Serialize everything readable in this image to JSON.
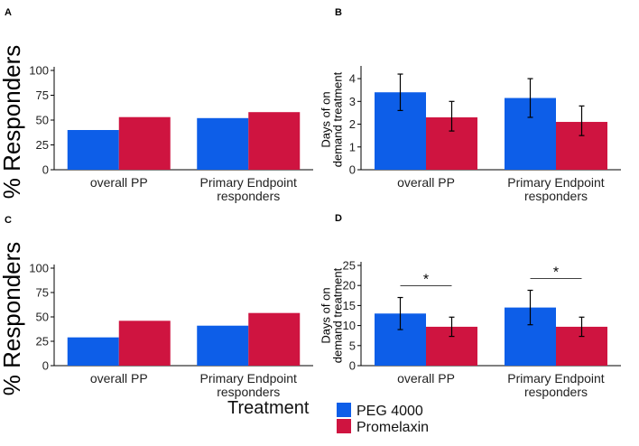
{
  "legend": {
    "title": "Treatment",
    "items": [
      {
        "label": "PEG 4000",
        "color": "#0d5ee8"
      },
      {
        "label": "Promelaxin",
        "color": "#cf1440"
      }
    ]
  },
  "chart_data": [
    {
      "panel": "A",
      "type": "bar",
      "ylabel": "% Responders",
      "categories": [
        "overall PP",
        "Primary Endpoint\nresponders"
      ],
      "ylim": [
        0,
        100
      ],
      "yticks": [
        0,
        25,
        50,
        75,
        100
      ],
      "series": [
        {
          "name": "PEG 4000",
          "values": [
            40,
            52
          ]
        },
        {
          "name": "Promelaxin",
          "values": [
            53,
            58
          ]
        }
      ]
    },
    {
      "panel": "B",
      "type": "bar",
      "ylabel": "Days of on\ndemand treatment",
      "categories": [
        "overall PP",
        "Primary Endpoint\nresponders"
      ],
      "ylim": [
        0,
        4.4
      ],
      "yticks": [
        0,
        1,
        2,
        3,
        4
      ],
      "series": [
        {
          "name": "PEG 4000",
          "values": [
            3.4,
            3.15
          ],
          "err_low": [
            2.6,
            2.3
          ],
          "err_high": [
            4.2,
            4.0
          ]
        },
        {
          "name": "Promelaxin",
          "values": [
            2.3,
            2.1
          ],
          "err_low": [
            1.7,
            1.5
          ],
          "err_high": [
            3.0,
            2.8
          ]
        }
      ]
    },
    {
      "panel": "C",
      "type": "bar",
      "ylabel": "% Responders",
      "categories": [
        "overall PP",
        "Primary Endpoint\nresponders"
      ],
      "ylim": [
        0,
        100
      ],
      "yticks": [
        0,
        25,
        50,
        75,
        100
      ],
      "series": [
        {
          "name": "PEG 4000",
          "values": [
            29,
            41
          ]
        },
        {
          "name": "Promelaxin",
          "values": [
            46,
            54
          ]
        }
      ]
    },
    {
      "panel": "D",
      "type": "bar",
      "ylabel": "Days of on\ndemand treatment",
      "categories": [
        "overall PP",
        "Primary Endpoint\nresponders"
      ],
      "ylim": [
        0,
        25
      ],
      "yticks": [
        0,
        5,
        10,
        15,
        20,
        25
      ],
      "series": [
        {
          "name": "PEG 4000",
          "values": [
            13,
            14.5
          ],
          "err_low": [
            9,
            10.2
          ],
          "err_high": [
            17,
            18.8
          ]
        },
        {
          "name": "Promelaxin",
          "values": [
            9.7,
            9.7
          ],
          "err_low": [
            7.3,
            7.3
          ],
          "err_high": [
            12.1,
            12.1
          ]
        }
      ],
      "significance": [
        "*",
        "*"
      ]
    }
  ]
}
